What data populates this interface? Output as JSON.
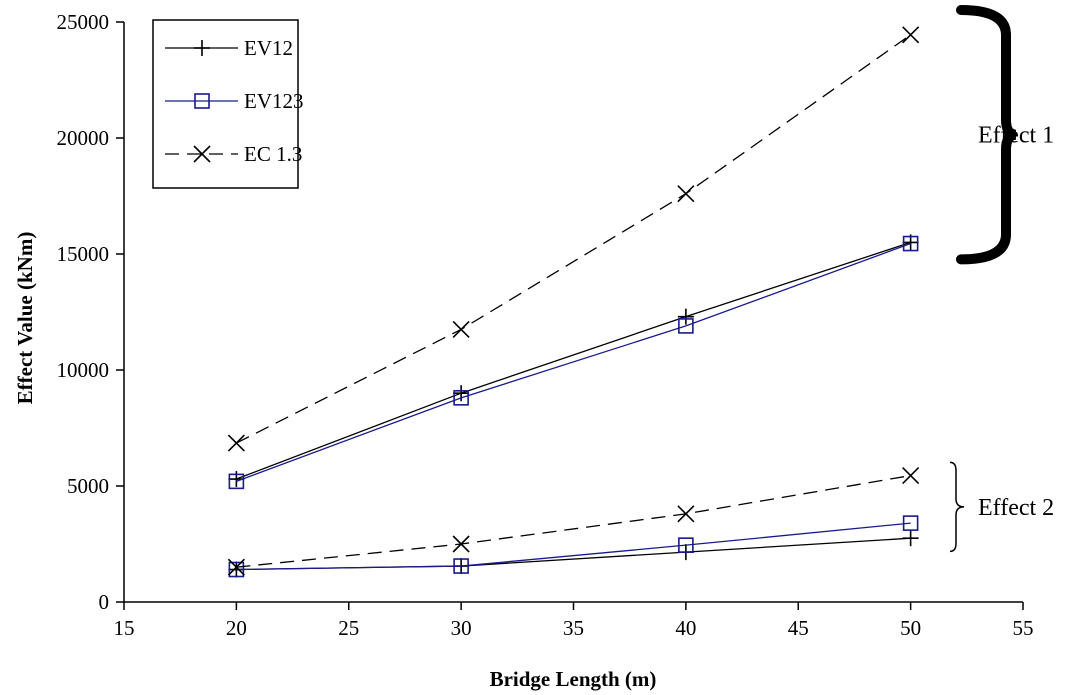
{
  "chart_data": {
    "type": "line",
    "title": "",
    "xlabel": "Bridge Length (m)",
    "ylabel": "Effect Value (kNm)",
    "xlim": [
      15,
      55
    ],
    "ylim": [
      0,
      25000
    ],
    "xticks": [
      15,
      20,
      25,
      30,
      35,
      40,
      45,
      50,
      55
    ],
    "yticks": [
      0,
      5000,
      10000,
      15000,
      20000,
      25000
    ],
    "grid": false,
    "legend": "top-left",
    "x": [
      20,
      30,
      40,
      50
    ],
    "series": [
      {
        "name": "EV12",
        "marker": "plus",
        "color": "#000000",
        "dash": "solid",
        "group": "Effect 1",
        "values": [
          5300,
          9000,
          12300,
          15500
        ]
      },
      {
        "name": "EV123",
        "marker": "square",
        "color": "#1a1a8c",
        "dash": "solid",
        "group": "Effect 1",
        "values": [
          5200,
          8800,
          11900,
          15450
        ]
      },
      {
        "name": "EC 1.3",
        "marker": "x",
        "color": "#000000",
        "dash": "dashed",
        "group": "Effect 1",
        "values": [
          6850,
          11750,
          17600,
          24450
        ]
      },
      {
        "name": "EV12",
        "marker": "plus",
        "color": "#000000",
        "dash": "solid",
        "group": "Effect 2",
        "values": [
          1400,
          1550,
          2150,
          2750
        ]
      },
      {
        "name": "EV123",
        "marker": "square",
        "color": "#1a1a8c",
        "dash": "solid",
        "group": "Effect 2",
        "values": [
          1400,
          1550,
          2450,
          3400
        ]
      },
      {
        "name": "EC 1.3",
        "marker": "x",
        "color": "#000000",
        "dash": "dashed",
        "group": "Effect 2",
        "values": [
          1500,
          2500,
          3800,
          5450
        ]
      }
    ],
    "legend_entries": [
      {
        "name": "EV12",
        "marker": "plus",
        "color": "#000000",
        "dash": "solid"
      },
      {
        "name": "EV123",
        "marker": "square",
        "color": "#1a1a8c",
        "dash": "solid"
      },
      {
        "name": "EC 1.3",
        "marker": "x",
        "color": "#000000",
        "dash": "dashed"
      }
    ],
    "annotations": [
      {
        "text": "Effect 1",
        "brace": "bold",
        "range": [
          15500,
          25000
        ]
      },
      {
        "text": "Effect 2",
        "brace": "thin",
        "range": [
          2700,
          5500
        ]
      }
    ]
  }
}
